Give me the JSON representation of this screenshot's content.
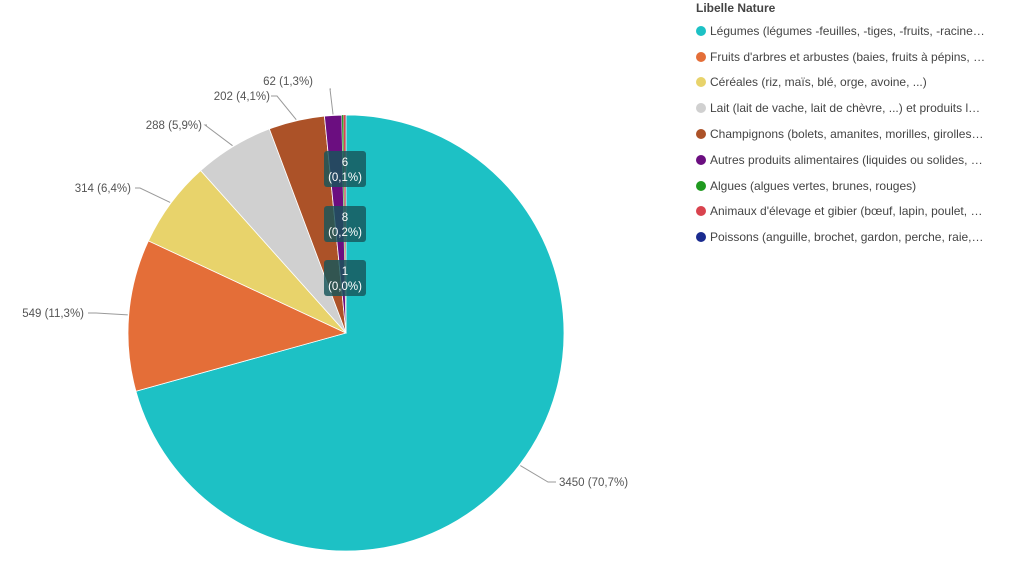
{
  "chart_data": {
    "type": "pie",
    "legend_title": "Libelle Nature",
    "legend_position": "right",
    "slices": [
      {
        "label": "Légumes (légumes -feuilles, -tiges, -fruits, -racines)",
        "value": 3450,
        "display": "3450 (70,7%)",
        "color": "#1dc1c5"
      },
      {
        "label": "Fruits d'arbres et arbustes (baies, fruits à pépins, ...)",
        "value": 549,
        "display": "549 (11,3%)",
        "color": "#e46e38"
      },
      {
        "label": "Céréales  (riz, maïs, blé, orge, avoine, ...)",
        "value": 314,
        "display": "314 (6,4%)",
        "color": "#e8d36b"
      },
      {
        "label": "Lait (lait de vache, lait de chèvre, ...) et produits laitiers",
        "value": 288,
        "display": "288 (5,9%)",
        "color": "#d0d0d0"
      },
      {
        "label": "Champignons (bolets, amanites, morilles, girolles, ...)",
        "value": 202,
        "display": "202 (4,1%)",
        "color": "#ac5228"
      },
      {
        "label": "Autres produits alimentaires (liquides ou solides, ...)",
        "value": 62,
        "display": "62 (1,3%)",
        "color": "#6b0e80"
      },
      {
        "label": "Algues (algues vertes, brunes, rouges)",
        "value": 6,
        "display": "6 (0,1%)",
        "color": "#1f9a1f"
      },
      {
        "label": "Animaux d'élevage et gibier (bœuf, lapin, poulet, ...)",
        "value": 8,
        "display": "8 (0,2%)",
        "color": "#d9434e"
      },
      {
        "label": "Poissons (anguille, brochet, gardon, perche, raie, ...)",
        "value": 1,
        "display": "1 (0,0%)",
        "color": "#1a2b8f"
      }
    ],
    "legend_labels": [
      "Légumes (légumes -feuilles, -tiges, -fruits, -racine…",
      "Fruits d'arbres et arbustes (baies, fruits à pépins, …",
      "Céréales  (riz, maïs, blé, orge, avoine, ...)",
      "Lait (lait de vache, lait de chèvre, ...) et produits l…",
      "Champignons (bolets, amanites, morilles, girolles…",
      "Autres produits alimentaires (liquides ou solides, …",
      "Algues (algues vertes, brunes, rouges)",
      "Animaux d'élevage et gibier (bœuf, lapin, poulet, …",
      "Poissons (anguille, brochet, gardon, perche, raie,…"
    ]
  }
}
